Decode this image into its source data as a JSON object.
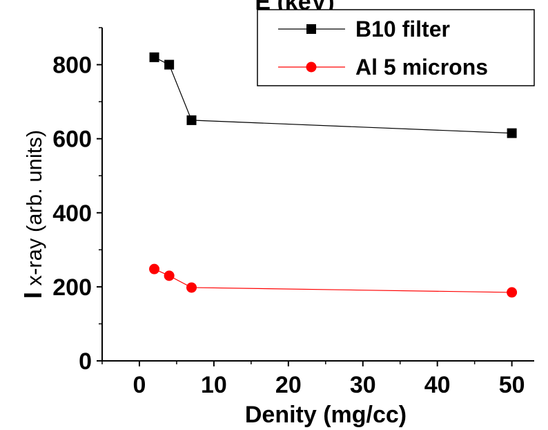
{
  "chart_data": {
    "type": "line",
    "title": "",
    "top_label": "E (keV)",
    "xlabel": "Denity (mg/cc)",
    "ylabel_main": "I",
    "ylabel_rest": " x-ray (arb. units)",
    "xlim": [
      -5,
      53
    ],
    "ylim": [
      0,
      900
    ],
    "x_ticks": [
      0,
      10,
      20,
      30,
      40,
      50
    ],
    "y_ticks": [
      0,
      200,
      400,
      600,
      800
    ],
    "x_minor_step": 5,
    "y_minor_step": 100,
    "grid": false,
    "legend_position": "top-right",
    "series": [
      {
        "name": "B10 filter",
        "color": "#000000",
        "marker": "square",
        "x": [
          2,
          4,
          7,
          50
        ],
        "y": [
          820,
          800,
          650,
          615
        ]
      },
      {
        "name": "Al 5 microns",
        "color": "#ff0000",
        "marker": "circle",
        "x": [
          2,
          4,
          7,
          50
        ],
        "y": [
          248,
          230,
          198,
          185
        ]
      }
    ]
  }
}
